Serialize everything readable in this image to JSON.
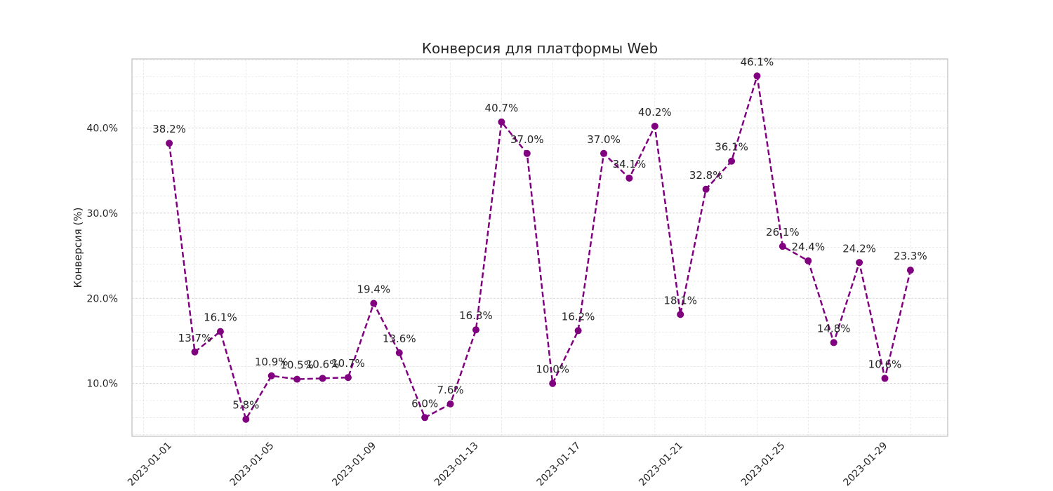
{
  "chart_data": {
    "type": "line",
    "title": "Конверсия для платформы Web",
    "xlabel": "",
    "ylabel": "Конверсия (%)",
    "x": [
      "2023-01-01",
      "2023-01-02",
      "2023-01-03",
      "2023-01-04",
      "2023-01-05",
      "2023-01-06",
      "2023-01-07",
      "2023-01-08",
      "2023-01-09",
      "2023-01-10",
      "2023-01-11",
      "2023-01-12",
      "2023-01-13",
      "2023-01-14",
      "2023-01-15",
      "2023-01-16",
      "2023-01-17",
      "2023-01-18",
      "2023-01-19",
      "2023-01-20",
      "2023-01-21",
      "2023-01-22",
      "2023-01-23",
      "2023-01-24",
      "2023-01-25",
      "2023-01-26",
      "2023-01-27",
      "2023-01-28",
      "2023-01-29",
      "2023-01-30"
    ],
    "x_ticks": [
      "2023-01-01",
      "2023-01-05",
      "2023-01-09",
      "2023-01-13",
      "2023-01-17",
      "2023-01-21",
      "2023-01-25",
      "2023-01-29"
    ],
    "values": [
      38.2,
      13.7,
      16.1,
      5.8,
      10.9,
      10.5,
      10.6,
      10.7,
      19.4,
      13.6,
      6.0,
      7.6,
      16.3,
      40.7,
      37.0,
      10.0,
      16.2,
      37.0,
      34.1,
      40.2,
      18.1,
      32.8,
      36.1,
      46.1,
      26.1,
      24.4,
      14.8,
      24.2,
      10.6,
      23.3
    ],
    "data_labels": [
      "38.2%",
      "13.7%",
      "16.1%",
      "5.8%",
      "10.9%",
      "10.5%",
      "10.6%",
      "10.7%",
      "19.4%",
      "13.6%",
      "6.0%",
      "7.6%",
      "16.3%",
      "40.7%",
      "37.0%",
      "10.0%",
      "16.2%",
      "37.0%",
      "34.1%",
      "40.2%",
      "18.1%",
      "32.8%",
      "36.1%",
      "46.1%",
      "26.1%",
      "24.4%",
      "14.8%",
      "24.2%",
      "10.6%",
      "23.3%"
    ],
    "y_ticks": [
      10,
      20,
      30,
      40
    ],
    "y_tick_labels": [
      "10.0%",
      "20.0%",
      "30.0%",
      "40.0%"
    ],
    "ylim": [
      3.8,
      48.1
    ],
    "xlim": [
      "2022-12-30T13:00",
      "2023-01-31T11:00"
    ],
    "grid": true,
    "minor_grid": true,
    "line_color": "#800080",
    "line_style": "dashed",
    "marker": "circle"
  }
}
